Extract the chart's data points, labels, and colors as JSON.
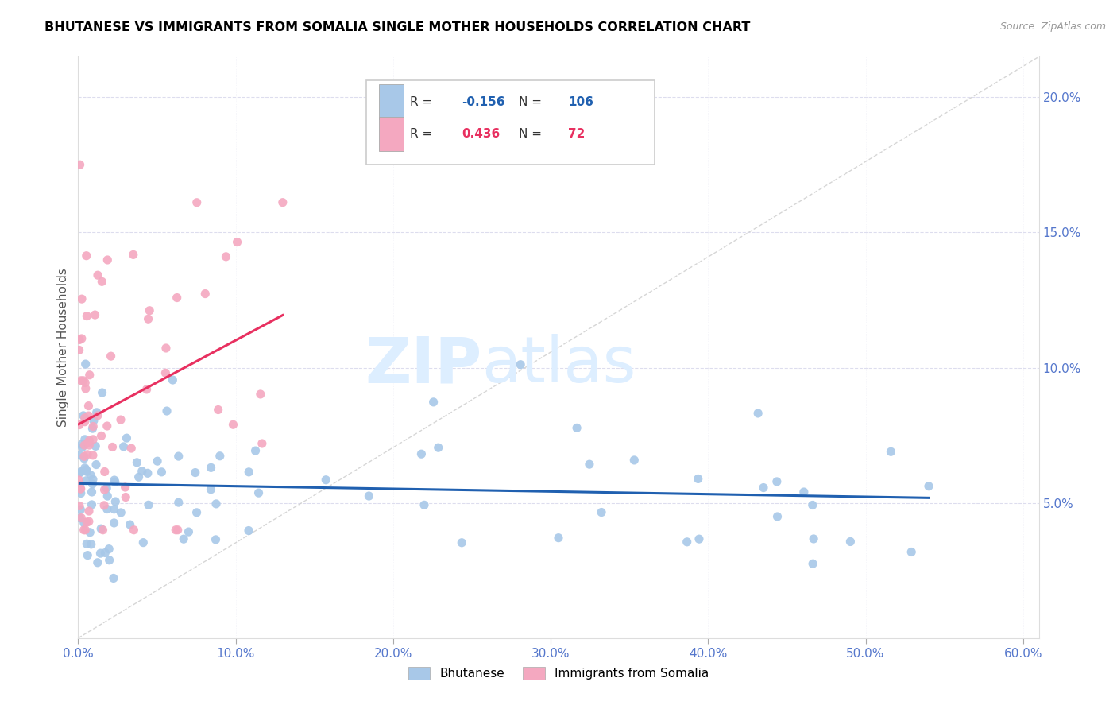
{
  "title": "BHUTANESE VS IMMIGRANTS FROM SOMALIA SINGLE MOTHER HOUSEHOLDS CORRELATION CHART",
  "source": "Source: ZipAtlas.com",
  "bhutanese_label": "Bhutanese",
  "somalia_label": "Immigrants from Somalia",
  "r_bhutanese": -0.156,
  "n_bhutanese": 106,
  "r_somalia": 0.436,
  "n_somalia": 72,
  "dot_color_bhutanese": "#a8c8e8",
  "dot_color_somalia": "#f4a8c0",
  "line_color_bhutanese": "#2060b0",
  "line_color_somalia": "#e83060",
  "xlim": [
    0.0,
    0.61
  ],
  "ylim": [
    0.0,
    0.215
  ],
  "xticks": [
    0.0,
    0.1,
    0.2,
    0.3,
    0.4,
    0.5,
    0.6
  ],
  "yticks_right": [
    0.05,
    0.1,
    0.15,
    0.2
  ],
  "ylabel": "Single Mother Households",
  "tick_color": "#5577cc",
  "grid_color": "#ddddee",
  "watermark_color": "#ddeeff"
}
